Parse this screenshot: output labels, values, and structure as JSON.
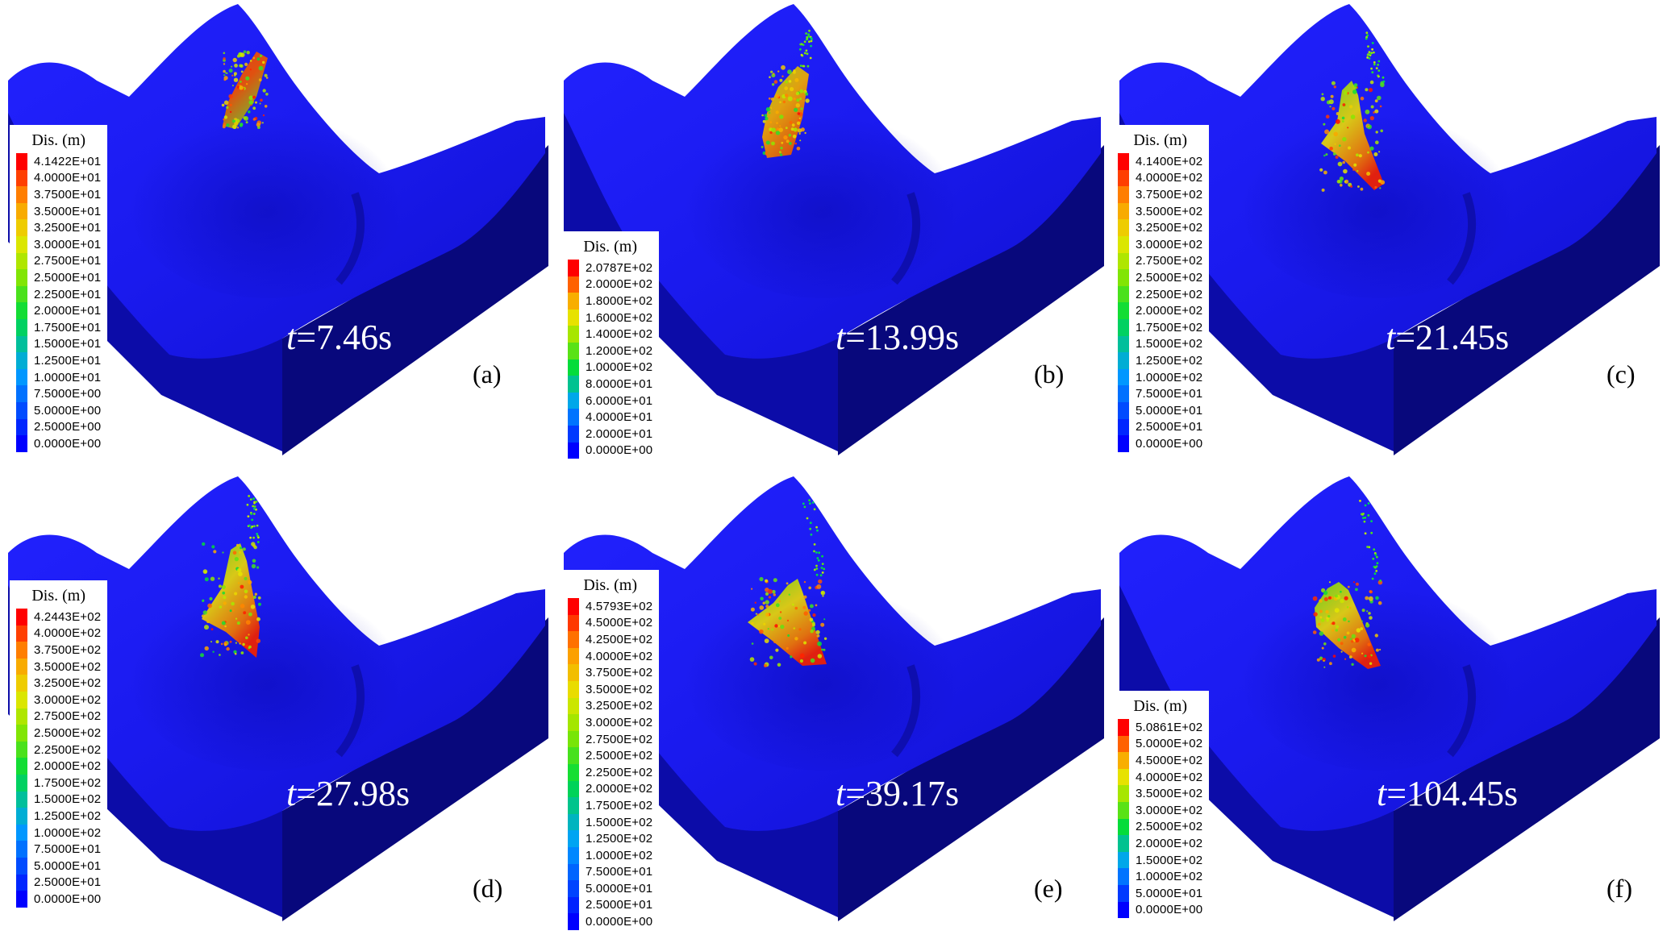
{
  "panels": [
    {
      "label": "(a)",
      "time_var": "t",
      "time_value": "=7.46s",
      "legend": {
        "title": "Dis. (m)",
        "levels": [
          "4.1422E+01",
          "4.0000E+01",
          "3.7500E+01",
          "3.5000E+01",
          "3.2500E+01",
          "3.0000E+01",
          "2.7500E+01",
          "2.5000E+01",
          "2.2500E+01",
          "2.0000E+01",
          "1.7500E+01",
          "1.5000E+01",
          "1.2500E+01",
          "1.0000E+01",
          "7.5000E+00",
          "5.0000E+00",
          "2.5000E+00",
          "0.0000E+00"
        ]
      }
    },
    {
      "label": "(b)",
      "time_var": "t",
      "time_value": "=13.99s",
      "legend": {
        "title": "Dis. (m)",
        "levels": [
          "2.0787E+02",
          "2.0000E+02",
          "1.8000E+02",
          "1.6000E+02",
          "1.4000E+02",
          "1.2000E+02",
          "1.0000E+02",
          "8.0000E+01",
          "6.0000E+01",
          "4.0000E+01",
          "2.0000E+01",
          "0.0000E+00"
        ]
      }
    },
    {
      "label": "(c)",
      "time_var": "t",
      "time_value": "=21.45s",
      "legend": {
        "title": "Dis. (m)",
        "levels": [
          "4.1400E+02",
          "4.0000E+02",
          "3.7500E+02",
          "3.5000E+02",
          "3.2500E+02",
          "3.0000E+02",
          "2.7500E+02",
          "2.5000E+02",
          "2.2500E+02",
          "2.0000E+02",
          "1.7500E+02",
          "1.5000E+02",
          "1.2500E+02",
          "1.0000E+02",
          "7.5000E+01",
          "5.0000E+01",
          "2.5000E+01",
          "0.0000E+00"
        ]
      }
    },
    {
      "label": "(d)",
      "time_var": "t",
      "time_value": "=27.98s",
      "legend": {
        "title": "Dis. (m)",
        "levels": [
          "4.2443E+02",
          "4.0000E+02",
          "3.7500E+02",
          "3.5000E+02",
          "3.2500E+02",
          "3.0000E+02",
          "2.7500E+02",
          "2.5000E+02",
          "2.2500E+02",
          "2.0000E+02",
          "1.7500E+02",
          "1.5000E+02",
          "1.2500E+02",
          "1.0000E+02",
          "7.5000E+01",
          "5.0000E+01",
          "2.5000E+01",
          "0.0000E+00"
        ]
      }
    },
    {
      "label": "(e)",
      "time_var": "t",
      "time_value": "=39.17s",
      "legend": {
        "title": "Dis. (m)",
        "levels": [
          "4.5793E+02",
          "4.5000E+02",
          "4.2500E+02",
          "4.0000E+02",
          "3.7500E+02",
          "3.5000E+02",
          "3.2500E+02",
          "3.0000E+02",
          "2.7500E+02",
          "2.5000E+02",
          "2.2500E+02",
          "2.0000E+02",
          "1.7500E+02",
          "1.5000E+02",
          "1.2500E+02",
          "1.0000E+02",
          "7.5000E+01",
          "5.0000E+01",
          "2.5000E+01",
          "0.0000E+00"
        ]
      }
    },
    {
      "label": "(f)",
      "time_var": "t",
      "time_value": "=104.45s",
      "legend": {
        "title": "Dis. (m)",
        "levels": [
          "5.0861E+02",
          "5.0000E+02",
          "4.5000E+02",
          "4.0000E+02",
          "3.5000E+02",
          "3.0000E+02",
          "2.5000E+02",
          "2.0000E+02",
          "1.5000E+02",
          "1.0000E+02",
          "5.0000E+01",
          "0.0000E+00"
        ]
      }
    }
  ],
  "colors": {
    "terrain_surface": "#1a1aee",
    "terrain_side": "#0c0ca8",
    "terrain_side_dark": "#08087c",
    "legend_top": "#ff0000",
    "legend_bottom": "#0000ff"
  }
}
